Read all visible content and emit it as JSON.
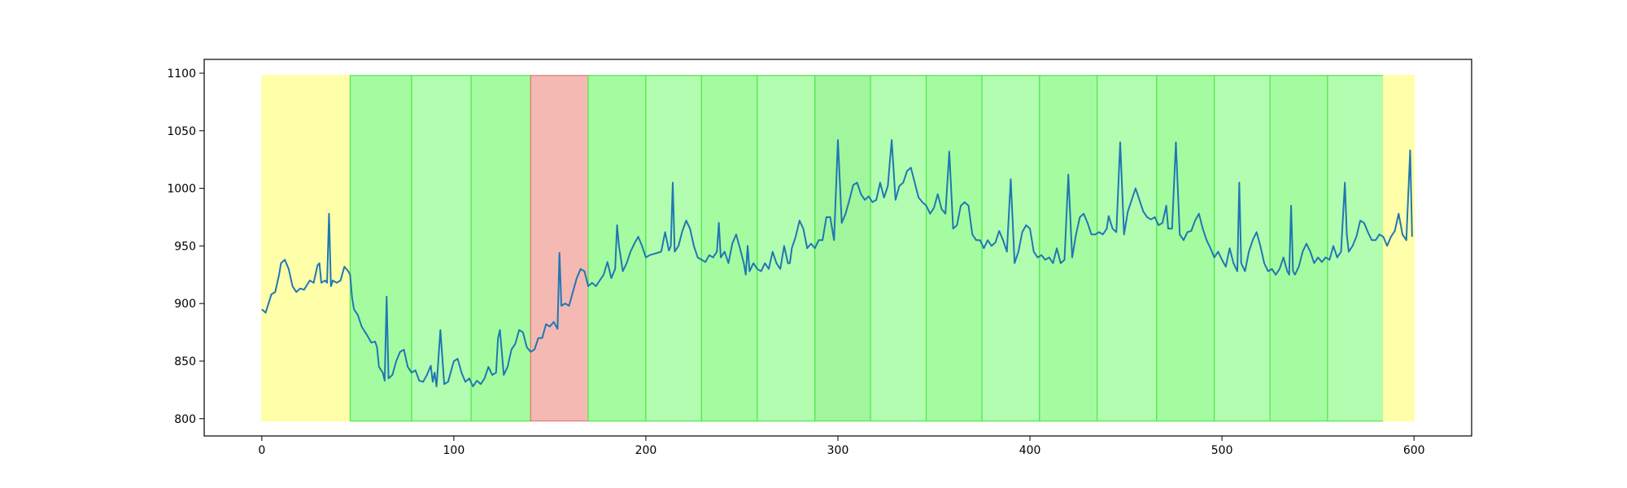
{
  "chart_data": {
    "type": "line",
    "color": "#1f77b4",
    "xlim": [
      -30,
      630
    ],
    "ylim": [
      785,
      1112
    ],
    "xticks": [
      0,
      100,
      200,
      300,
      400,
      500,
      600
    ],
    "yticks": [
      800,
      850,
      900,
      950,
      1000,
      1050,
      1100
    ],
    "grid": false,
    "region_ylim": [
      798,
      1098
    ],
    "regions": [
      {
        "x0": 0,
        "x1": 46,
        "color": "#ffffaa",
        "edgecolor": "#ffff99"
      },
      {
        "x0": 46,
        "x1": 78,
        "color": "#a5fca0",
        "edgecolor": "#4de84d"
      },
      {
        "x0": 78,
        "x1": 109,
        "color": "#b3fdb0",
        "edgecolor": "#4de84d"
      },
      {
        "x0": 109,
        "x1": 140,
        "color": "#a5fca0",
        "edgecolor": "#4de84d"
      },
      {
        "x0": 140,
        "x1": 170,
        "color": "#f4b9b2",
        "edgecolor": "#e07a70"
      },
      {
        "x0": 170,
        "x1": 200,
        "color": "#a5fca0",
        "edgecolor": "#4de84d"
      },
      {
        "x0": 200,
        "x1": 229,
        "color": "#b3fdb0",
        "edgecolor": "#4de84d"
      },
      {
        "x0": 229,
        "x1": 258,
        "color": "#a5fca0",
        "edgecolor": "#4de84d"
      },
      {
        "x0": 258,
        "x1": 288,
        "color": "#b3fdb0",
        "edgecolor": "#4de84d"
      },
      {
        "x0": 288,
        "x1": 317,
        "color": "#a1f59c",
        "edgecolor": "#4de84d"
      },
      {
        "x0": 317,
        "x1": 346,
        "color": "#b3fdb0",
        "edgecolor": "#4de84d"
      },
      {
        "x0": 346,
        "x1": 375,
        "color": "#a5fca0",
        "edgecolor": "#4de84d"
      },
      {
        "x0": 375,
        "x1": 405,
        "color": "#b3fdb0",
        "edgecolor": "#4de84d"
      },
      {
        "x0": 405,
        "x1": 435,
        "color": "#a5fca0",
        "edgecolor": "#4de84d"
      },
      {
        "x0": 435,
        "x1": 466,
        "color": "#b3fdb0",
        "edgecolor": "#4de84d"
      },
      {
        "x0": 466,
        "x1": 496,
        "color": "#a5fca0",
        "edgecolor": "#4de84d"
      },
      {
        "x0": 496,
        "x1": 525,
        "color": "#b3fdb0",
        "edgecolor": "#4de84d"
      },
      {
        "x0": 525,
        "x1": 555,
        "color": "#a5fca0",
        "edgecolor": "#4de84d"
      },
      {
        "x0": 555,
        "x1": 584,
        "color": "#b3fdb0",
        "edgecolor": "#4de84d"
      },
      {
        "x0": 584,
        "x1": 600,
        "color": "#ffffaa",
        "edgecolor": "#ffff99"
      }
    ],
    "x": [
      0,
      2,
      5,
      7,
      9,
      10,
      12,
      14,
      16,
      18,
      20,
      22,
      25,
      27,
      29,
      30,
      31,
      33,
      34,
      35,
      36,
      37,
      39,
      41,
      43,
      45,
      46,
      47,
      48,
      50,
      52,
      55,
      57,
      59,
      60,
      61,
      63,
      64,
      65,
      66,
      68,
      70,
      72,
      74,
      76,
      78,
      80,
      82,
      84,
      86,
      88,
      89,
      90,
      91,
      93,
      95,
      97,
      100,
      102,
      104,
      106,
      108,
      110,
      112,
      114,
      116,
      118,
      120,
      122,
      123,
      124,
      126,
      128,
      130,
      132,
      134,
      136,
      138,
      140,
      142,
      144,
      146,
      148,
      150,
      152,
      154,
      155,
      156,
      158,
      160,
      162,
      164,
      166,
      168,
      170,
      172,
      174,
      176,
      178,
      180,
      182,
      184,
      185,
      186,
      188,
      190,
      192,
      194,
      196,
      198,
      200,
      202,
      204,
      206,
      208,
      210,
      212,
      213,
      214,
      215,
      217,
      219,
      221,
      223,
      225,
      227,
      229,
      231,
      233,
      235,
      237,
      238,
      239,
      241,
      243,
      245,
      247,
      249,
      251,
      252,
      253,
      254,
      256,
      258,
      260,
      262,
      264,
      266,
      268,
      270,
      272,
      274,
      275,
      276,
      278,
      280,
      282,
      284,
      286,
      288,
      290,
      292,
      294,
      296,
      298,
      300,
      302,
      304,
      306,
      308,
      310,
      312,
      314,
      316,
      318,
      320,
      322,
      324,
      326,
      328,
      330,
      332,
      334,
      336,
      338,
      340,
      342,
      344,
      346,
      348,
      350,
      352,
      354,
      356,
      358,
      360,
      362,
      364,
      366,
      368,
      370,
      372,
      374,
      376,
      378,
      380,
      382,
      384,
      386,
      388,
      390,
      392,
      394,
      396,
      398,
      400,
      402,
      404,
      406,
      408,
      410,
      412,
      414,
      416,
      418,
      420,
      422,
      424,
      426,
      428,
      430,
      432,
      434,
      436,
      438,
      440,
      441,
      443,
      445,
      447,
      449,
      451,
      453,
      455,
      457,
      459,
      461,
      463,
      465,
      467,
      469,
      471,
      472,
      474,
      476,
      478,
      480,
      482,
      484,
      486,
      488,
      490,
      492,
      494,
      496,
      498,
      500,
      502,
      504,
      506,
      508,
      509,
      510,
      512,
      514,
      516,
      518,
      520,
      522,
      524,
      526,
      528,
      530,
      532,
      534,
      535,
      536,
      537,
      538,
      540,
      542,
      544,
      546,
      548,
      550,
      552,
      554,
      556,
      558,
      560,
      562,
      564,
      565,
      566,
      568,
      570,
      572,
      574,
      576,
      578,
      580,
      582,
      584,
      586,
      588,
      590,
      592,
      594,
      596,
      598,
      599
    ],
    "values": [
      895,
      892,
      908,
      910,
      925,
      935,
      938,
      930,
      915,
      910,
      913,
      912,
      920,
      918,
      933,
      935,
      918,
      920,
      918,
      978,
      915,
      920,
      918,
      920,
      932,
      928,
      925,
      905,
      895,
      890,
      880,
      872,
      866,
      867,
      862,
      845,
      840,
      833,
      906,
      835,
      838,
      850,
      858,
      860,
      845,
      840,
      842,
      833,
      832,
      838,
      846,
      832,
      840,
      828,
      877,
      830,
      832,
      850,
      852,
      840,
      832,
      835,
      828,
      833,
      830,
      835,
      845,
      838,
      840,
      870,
      877,
      838,
      845,
      860,
      865,
      877,
      875,
      862,
      858,
      860,
      870,
      870,
      882,
      880,
      884,
      878,
      944,
      898,
      900,
      898,
      910,
      922,
      930,
      928,
      915,
      918,
      915,
      920,
      925,
      936,
      922,
      930,
      968,
      950,
      928,
      935,
      945,
      952,
      958,
      950,
      940,
      942,
      943,
      944,
      945,
      962,
      946,
      950,
      1005,
      945,
      950,
      963,
      972,
      965,
      950,
      940,
      938,
      936,
      942,
      940,
      945,
      970,
      940,
      945,
      935,
      952,
      960,
      948,
      935,
      925,
      950,
      928,
      935,
      930,
      928,
      935,
      930,
      945,
      935,
      930,
      950,
      935,
      935,
      948,
      958,
      972,
      965,
      948,
      952,
      948,
      955,
      955,
      975,
      975,
      955,
      1042,
      970,
      978,
      990,
      1003,
      1005,
      995,
      990,
      993,
      988,
      990,
      1005,
      992,
      1002,
      1042,
      990,
      1002,
      1005,
      1015,
      1018,
      1005,
      992,
      988,
      985,
      978,
      983,
      995,
      982,
      978,
      1032,
      965,
      968,
      985,
      988,
      985,
      960,
      955,
      955,
      948,
      955,
      950,
      953,
      963,
      955,
      945,
      1008,
      935,
      945,
      962,
      968,
      965,
      945,
      940,
      942,
      938,
      940,
      935,
      948,
      935,
      938,
      1012,
      940,
      960,
      975,
      978,
      970,
      960,
      960,
      962,
      960,
      965,
      976,
      965,
      962,
      1040,
      960,
      980,
      990,
      1000,
      990,
      980,
      975,
      973,
      975,
      968,
      970,
      985,
      965,
      965,
      1040,
      960,
      955,
      962,
      963,
      972,
      978,
      965,
      955,
      948,
      940,
      945,
      938,
      932,
      948,
      935,
      928,
      1005,
      935,
      928,
      945,
      955,
      962,
      950,
      935,
      928,
      930,
      925,
      930,
      940,
      928,
      925,
      985,
      928,
      925,
      932,
      945,
      952,
      945,
      935,
      940,
      936,
      940,
      938,
      950,
      940,
      945,
      1005,
      960,
      945,
      950,
      958,
      972,
      970,
      962,
      955,
      955,
      960,
      958,
      950,
      958,
      963,
      978,
      960,
      955,
      1033,
      958
    ]
  }
}
